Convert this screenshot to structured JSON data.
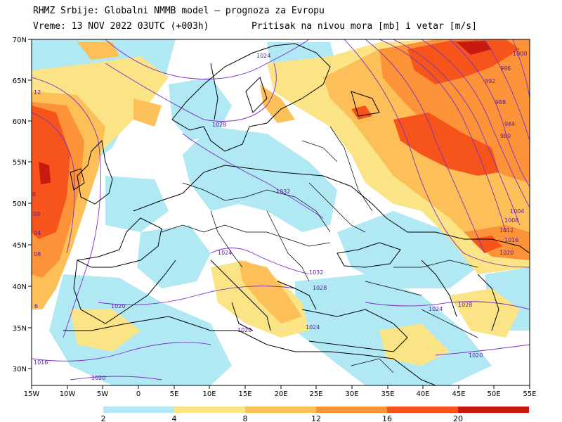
{
  "header": {
    "line1": "RHMZ Srbije: Globalni NMMB model — prognoza za Evropu",
    "line2": "Vreme: 13 NOV 2022 03UTC (+003h)",
    "line2b": "Pritisak na nivou mora [mb] i vetar [m/s]"
  },
  "axes": {
    "lat_labels": [
      "70N",
      "65N",
      "60N",
      "55N",
      "50N",
      "45N",
      "40N",
      "35N",
      "30N"
    ],
    "lon_labels": [
      "15W",
      "10W",
      "5W",
      "0",
      "5E",
      "10E",
      "15E",
      "20E",
      "25E",
      "30E",
      "35E",
      "40E",
      "45E",
      "50E",
      "55E"
    ]
  },
  "colorbar": {
    "labels": [
      "2",
      "4",
      "8",
      "12",
      "16",
      "20"
    ],
    "colors": [
      "#b0e8f4",
      "#fbe486",
      "#fdbf57",
      "#fd9338",
      "#f6541a",
      "#c91a10"
    ]
  },
  "colors": {
    "land_bg": "#ffffff",
    "isobar": "#7b30c8",
    "coast": "#000000"
  },
  "isobars": [
    {
      "label": "1024",
      "wind": "calm"
    },
    {
      "label": "1028",
      "wind": "calm"
    },
    {
      "label": "1032",
      "wind": "calm"
    },
    {
      "label": "1024",
      "wind": "calm"
    },
    {
      "label": "1032",
      "wind": "calm"
    },
    {
      "label": "1028",
      "wind": "calm"
    },
    {
      "label": "1020",
      "wind": "calm"
    },
    {
      "label": "1020",
      "wind": "calm"
    },
    {
      "label": "1024",
      "wind": "calm"
    },
    {
      "label": "1020",
      "wind": "calm"
    },
    {
      "label": "1016",
      "wind": "calm"
    },
    {
      "label": "1028",
      "wind": "calm"
    },
    {
      "label": "1024",
      "wind": "calm"
    },
    {
      "label": "1020",
      "wind": "calm"
    },
    {
      "label": "1000",
      "wind": "strong"
    },
    {
      "label": "996",
      "wind": "strong"
    },
    {
      "label": "992",
      "wind": "strong"
    },
    {
      "label": "988",
      "wind": "strong"
    },
    {
      "label": "984",
      "wind": "strong"
    },
    {
      "label": "980",
      "wind": "strong"
    },
    {
      "label": "1004",
      "wind": "moderate"
    },
    {
      "label": "1008",
      "wind": "moderate"
    },
    {
      "label": "1012",
      "wind": "moderate"
    },
    {
      "label": "1016",
      "wind": "moderate"
    },
    {
      "label": "1020",
      "wind": "moderate"
    },
    {
      "label": "12",
      "wind": "strong"
    },
    {
      "label": "8",
      "wind": "strong"
    },
    {
      "label": "00",
      "wind": "strong"
    },
    {
      "label": "04",
      "wind": "strong"
    },
    {
      "label": "08",
      "wind": "strong"
    },
    {
      "label": "6",
      "wind": "strong"
    }
  ]
}
